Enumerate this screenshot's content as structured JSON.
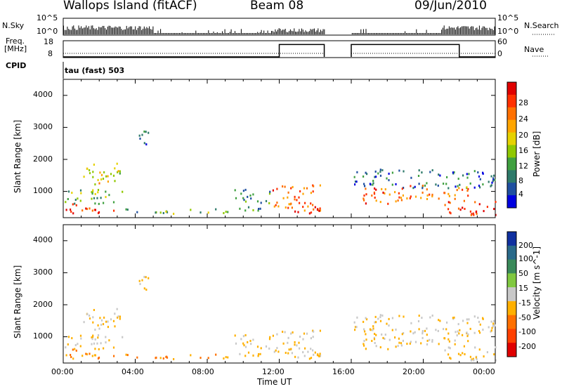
{
  "header": {
    "station": "Wallops Island (fitACF)",
    "beam": "Beam 08",
    "date": "09/Jun/2010"
  },
  "strip": {
    "nsky_label": "N.Sky",
    "nsky_ticks": [
      "10^5",
      "10^0"
    ],
    "nsearch_label": "N.Search",
    "nsearch_ticks": [
      "10^5",
      "10^0"
    ],
    "freq_label_1": "Freq.",
    "freq_label_2": "[MHz]",
    "freq_ticks": [
      "18",
      "8"
    ],
    "nave_label": "Nave",
    "nave_ticks": [
      "60",
      "0"
    ],
    "cpid_label": "CPID",
    "cpid_value": "tau (fast) 503"
  },
  "panels": {
    "y_label": "Slant Range [km]",
    "y_ticks": [
      "4000",
      "3000",
      "2000",
      "1000"
    ],
    "x_ticks": [
      "00:00",
      "04:00",
      "08:00",
      "12:00",
      "16:00",
      "20:00",
      "00:00"
    ],
    "x_label": "Time UT"
  },
  "colorbars": {
    "power": {
      "label": "Power [dB]",
      "ticks": [
        "28",
        "24",
        "20",
        "16",
        "12",
        "8",
        "4"
      ],
      "colors": [
        "#e00000",
        "#ff3000",
        "#ff7000",
        "#ffa500",
        "#e6d200",
        "#90c800",
        "#40a040",
        "#2e7a6a",
        "#1f4fa0",
        "#0000e0"
      ]
    },
    "velocity": {
      "label": "Velocity [m s^-1]",
      "ticks": [
        "200",
        "100",
        "50",
        "15",
        "-15",
        "-50",
        "-100",
        "-200"
      ],
      "colors": [
        "#1030a0",
        "#2a6a8a",
        "#3a8a5a",
        "#80c840",
        "#c8c8c8",
        "#ffb000",
        "#ff7000",
        "#ff4000",
        "#e00000"
      ]
    }
  },
  "chart_data": {
    "type": "heatmap",
    "title": "Wallops Island (fitACF) Beam 08 09/Jun/2010",
    "xlabel": "Time UT",
    "ylabel": "Slant Range [km]",
    "x_range_hours": [
      0,
      24
    ],
    "y_range_km": [
      180,
      4500
    ],
    "data_gap_hours": [
      14.5,
      16.0
    ],
    "freq_step_hours": [
      [
        0,
        12,
        8
      ],
      [
        12,
        14.5,
        16
      ],
      [
        16,
        22,
        16
      ],
      [
        22,
        24,
        8
      ]
    ],
    "scatter_regions": [
      {
        "t0": 0.0,
        "t1": 2.9,
        "r0": 300,
        "r1": 600,
        "power": 28,
        "velocity": -50
      },
      {
        "t0": 0.0,
        "t1": 3.5,
        "r0": 600,
        "r1": 1050,
        "power": 14,
        "velocity": -15
      },
      {
        "t0": 1.0,
        "t1": 3.2,
        "r0": 1200,
        "r1": 1900,
        "power": 18,
        "velocity": -15
      },
      {
        "t0": 3.0,
        "t1": 4.2,
        "r0": 300,
        "r1": 450,
        "power": 10,
        "velocity": -50
      },
      {
        "t0": 4.2,
        "t1": 4.8,
        "r0": 2400,
        "r1": 3100,
        "power": 8,
        "velocity": -15
      },
      {
        "t0": 5.0,
        "t1": 11.5,
        "r0": 300,
        "r1": 450,
        "power": 14,
        "velocity": -50
      },
      {
        "t0": 9.5,
        "t1": 11.5,
        "r0": 450,
        "r1": 1050,
        "power": 10,
        "velocity": -15
      },
      {
        "t0": 11.5,
        "t1": 14.3,
        "r0": 400,
        "r1": 1200,
        "power": 24,
        "velocity": -15
      },
      {
        "t0": 12.8,
        "t1": 14.3,
        "r0": 250,
        "r1": 600,
        "power": 28,
        "velocity": -15
      },
      {
        "t0": 16.1,
        "t1": 18.5,
        "r0": 600,
        "r1": 1100,
        "power": 26,
        "velocity": -15
      },
      {
        "t0": 16.1,
        "t1": 24.0,
        "r0": 1100,
        "r1": 1700,
        "power": 8,
        "velocity": -15
      },
      {
        "t0": 18.5,
        "t1": 22.5,
        "r0": 700,
        "r1": 1200,
        "power": 24,
        "velocity": -15
      },
      {
        "t0": 21.0,
        "t1": 24.0,
        "r0": 250,
        "r1": 700,
        "power": 28,
        "velocity": -15
      }
    ]
  }
}
